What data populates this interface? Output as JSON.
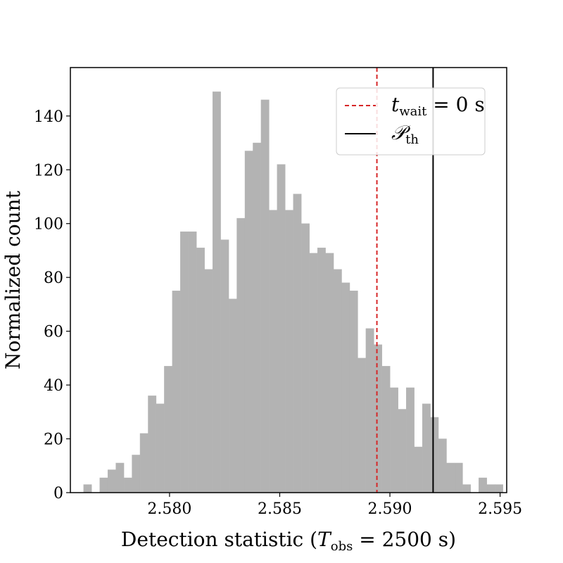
{
  "chart_data": {
    "type": "histogram",
    "title": "",
    "xlabel": {
      "pre": "Detection statistic (",
      "var": "T",
      "sub": "obs",
      "post": " = 2500 s)"
    },
    "ylabel": "Normalized count",
    "xlim": [
      2.5755,
      2.5953
    ],
    "ylim": [
      0,
      158
    ],
    "xticks": [
      {
        "value": 2.58,
        "label": "2.580"
      },
      {
        "value": 2.585,
        "label": "2.585"
      },
      {
        "value": 2.59,
        "label": "2.590"
      },
      {
        "value": 2.595,
        "label": "2.595"
      }
    ],
    "yticks": [
      {
        "value": 0,
        "label": "0"
      },
      {
        "value": 20,
        "label": "20"
      },
      {
        "value": 40,
        "label": "40"
      },
      {
        "value": 60,
        "label": "60"
      },
      {
        "value": 80,
        "label": "80"
      },
      {
        "value": 100,
        "label": "100"
      },
      {
        "value": 120,
        "label": "120"
      },
      {
        "value": 140,
        "label": "140"
      }
    ],
    "bin_start": 2.5761,
    "bin_width": 0.000366,
    "counts": [
      3,
      0,
      5.5,
      8.5,
      11,
      5.5,
      14,
      22,
      36,
      33,
      47,
      75,
      97,
      97,
      91,
      83,
      149,
      94,
      72,
      102,
      127,
      130,
      146,
      105,
      122,
      105,
      111,
      100,
      89,
      91,
      89,
      83,
      78,
      75,
      50,
      61,
      55,
      47,
      39,
      31,
      39,
      17,
      33,
      28,
      20,
      11,
      11,
      3,
      0,
      5.5,
      3,
      3
    ],
    "bar_color": "#b3b3b3",
    "grid": false,
    "legend_position": "top-right",
    "lines": [
      {
        "name": "t_wait = 0 s",
        "x": 2.58941,
        "color": "#d62728",
        "style": "dashed"
      },
      {
        "name": "P_th",
        "x": 2.59196,
        "color": "#000000",
        "style": "solid"
      }
    ]
  },
  "legend": {
    "entries": [
      {
        "var": "t",
        "sub": "wait",
        "post": " = 0 s"
      },
      {
        "var": "𝒫",
        "sub": "th",
        "post": ""
      }
    ]
  }
}
